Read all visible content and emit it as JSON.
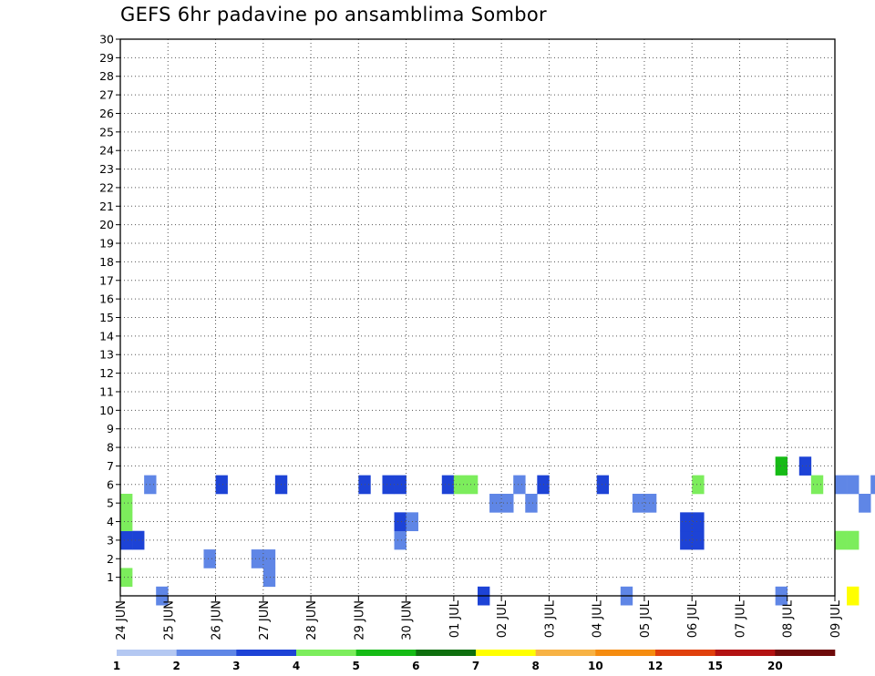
{
  "chart_data": {
    "type": "heatmap",
    "title": "GEFS 6hr padavine po ansamblima Sombor",
    "xlabel": "",
    "ylabel": "",
    "x_tick_labels": [
      "24 JUN",
      "25 JUN",
      "26 JUN",
      "27 JUN",
      "28 JUN",
      "29 JUN",
      "30 JUN",
      "01 JUL",
      "02 JUL",
      "03 JUL",
      "04 JUL",
      "05 JUL",
      "06 JUL",
      "07 JUL",
      "08 JUL",
      "09 JUL"
    ],
    "x_range": [
      "24 JUN 00Z",
      "09 JUL 00Z"
    ],
    "x_step": "6hr",
    "y_tick_labels": [
      1,
      2,
      3,
      4,
      5,
      6,
      7,
      8,
      9,
      10,
      11,
      12,
      13,
      14,
      15,
      16,
      17,
      18,
      19,
      20,
      21,
      22,
      23,
      24,
      25,
      26,
      27,
      28,
      29,
      30
    ],
    "y_range": [
      0,
      30
    ],
    "grid": true,
    "colorbar": {
      "placement": "bottom",
      "tick_labels": [
        "1",
        "2",
        "3",
        "4",
        "5",
        "6",
        "7",
        "8",
        "10",
        "12",
        "15",
        "20"
      ],
      "colors": [
        "#b4c8f2",
        "#5f86e6",
        "#1d43d6",
        "#7ced5c",
        "#16bb16",
        "#0e6f0e",
        "#ffff00",
        "#f7b244",
        "#f58c10",
        "#e0400c",
        "#b31212",
        "#6e0a0a"
      ]
    },
    "cells": [
      [
        0,
        1,
        3
      ],
      [
        0,
        2,
        30
      ],
      [
        0,
        1,
        42
      ],
      [
        0,
        1,
        55
      ],
      [
        0,
        6,
        61
      ],
      [
        0,
        3,
        65
      ],
      [
        0,
        2,
        69
      ],
      [
        0,
        1,
        71
      ],
      [
        0,
        3,
        73
      ],
      [
        0,
        1,
        74
      ],
      [
        0,
        1,
        80
      ],
      [
        0,
        2,
        82
      ],
      [
        0,
        4,
        88
      ],
      [
        0,
        3,
        89
      ],
      [
        0,
        1,
        91
      ],
      [
        0,
        5,
        92
      ],
      [
        0,
        5,
        93
      ],
      [
        0,
        6,
        94
      ],
      [
        0,
        6,
        95
      ],
      [
        0,
        3,
        98
      ],
      [
        0,
        1,
        99
      ],
      [
        0,
        1,
        107
      ],
      [
        0,
        1,
        109
      ],
      [
        0,
        3,
        112
      ],
      [
        1,
        3,
        0
      ],
      [
        1,
        1,
        12
      ],
      [
        1,
        2,
        73
      ],
      [
        1,
        5,
        73
      ],
      [
        1,
        6,
        74
      ],
      [
        1,
        6,
        75
      ],
      [
        1,
        1,
        76
      ],
      [
        1,
        5,
        77
      ],
      [
        1,
        5,
        80
      ],
      [
        1,
        5,
        81
      ],
      [
        1,
        5,
        82
      ],
      [
        1,
        6,
        83
      ],
      [
        1,
        5,
        84
      ],
      [
        1,
        5,
        92
      ],
      [
        1,
        3,
        93
      ],
      [
        1,
        7,
        95
      ],
      [
        1,
        5,
        96
      ],
      [
        1,
        7,
        97
      ],
      [
        1,
        5,
        98
      ],
      [
        1,
        6,
        98
      ],
      [
        1,
        3,
        99
      ],
      [
        1,
        6,
        104
      ],
      [
        2,
        1,
        7
      ],
      [
        2,
        1,
        11
      ],
      [
        2,
        1,
        12
      ],
      [
        2,
        3,
        79
      ],
      [
        2,
        1,
        80
      ],
      [
        2,
        5,
        81
      ],
      [
        2,
        6,
        81
      ],
      [
        2,
        3,
        82
      ],
      [
        2,
        2,
        85
      ],
      [
        2,
        2,
        86
      ],
      [
        2,
        3,
        90
      ],
      [
        2,
        4,
        91
      ],
      [
        2,
        1,
        99
      ],
      [
        2,
        3,
        100
      ],
      [
        2,
        1,
        104
      ],
      [
        3,
        2,
        0
      ],
      [
        3,
        2,
        1
      ],
      [
        3,
        1,
        23
      ],
      [
        3,
        2,
        47
      ],
      [
        3,
        2,
        48
      ],
      [
        3,
        3,
        60
      ],
      [
        3,
        3,
        61
      ],
      [
        3,
        2,
        68
      ],
      [
        3,
        3,
        80
      ],
      [
        3,
        3,
        91
      ],
      [
        3,
        2,
        94
      ],
      [
        3,
        4,
        106
      ],
      [
        3,
        1,
        108
      ],
      [
        3,
        5,
        110
      ],
      [
        3,
        7,
        111
      ],
      [
        4,
        3,
        0
      ],
      [
        4,
        2,
        23
      ],
      [
        4,
        1,
        24
      ],
      [
        4,
        2,
        47
      ],
      [
        4,
        2,
        48
      ],
      [
        4,
        1,
        66
      ],
      [
        4,
        2,
        67
      ],
      [
        4,
        1,
        75
      ],
      [
        4,
        2,
        78
      ],
      [
        4,
        1,
        97
      ],
      [
        4,
        2,
        107
      ],
      [
        4,
        1,
        111
      ],
      [
        5,
        3,
        0
      ],
      [
        5,
        1,
        31
      ],
      [
        5,
        1,
        32
      ],
      [
        5,
        1,
        34
      ],
      [
        5,
        1,
        43
      ],
      [
        5,
        1,
        44
      ],
      [
        5,
        1,
        62
      ],
      [
        5,
        1,
        76
      ],
      [
        5,
        2,
        80
      ],
      [
        5,
        1,
        81
      ],
      [
        5,
        1,
        91
      ],
      [
        5,
        3,
        92
      ],
      [
        5,
        1,
        93
      ],
      [
        5,
        1,
        97
      ],
      [
        5,
        8,
        101
      ],
      [
        5,
        1,
        105
      ],
      [
        6,
        1,
        2
      ],
      [
        6,
        2,
        8
      ],
      [
        6,
        2,
        13
      ],
      [
        6,
        2,
        20
      ],
      [
        6,
        2,
        22
      ],
      [
        6,
        2,
        23
      ],
      [
        6,
        2,
        27
      ],
      [
        6,
        3,
        28
      ],
      [
        6,
        3,
        29
      ],
      [
        6,
        1,
        33
      ],
      [
        6,
        2,
        35
      ],
      [
        6,
        2,
        40
      ],
      [
        6,
        3,
        48
      ],
      [
        6,
        3,
        58
      ],
      [
        6,
        1,
        60
      ],
      [
        6,
        1,
        61
      ],
      [
        6,
        1,
        63
      ],
      [
        6,
        1,
        65
      ],
      [
        6,
        1,
        66
      ],
      [
        6,
        2,
        72
      ],
      [
        6,
        2,
        73
      ],
      [
        6,
        1,
        81
      ],
      [
        6,
        5,
        83
      ],
      [
        6,
        1,
        85
      ],
      [
        6,
        4,
        86
      ],
      [
        6,
        1,
        87
      ],
      [
        6,
        2,
        92
      ],
      [
        6,
        1,
        99
      ],
      [
        6,
        1,
        102
      ],
      [
        6,
        1,
        108
      ],
      [
        6,
        6,
        109
      ],
      [
        6,
        6,
        110
      ],
      [
        6,
        1,
        111
      ],
      [
        6,
        1,
        113
      ],
      [
        7,
        4,
        55
      ],
      [
        7,
        2,
        57
      ],
      [
        7,
        4,
        64
      ],
      [
        7,
        3,
        71
      ],
      [
        7,
        3,
        73
      ],
      [
        7,
        4,
        79
      ],
      [
        7,
        3,
        88
      ],
      [
        7,
        1,
        89
      ],
      [
        7,
        6,
        95
      ],
      [
        7,
        5,
        96
      ],
      [
        7,
        3,
        99
      ],
      [
        7,
        3,
        100
      ],
      [
        7,
        8,
        104
      ],
      [
        7,
        2,
        106
      ],
      [
        7,
        4,
        111
      ]
    ]
  }
}
